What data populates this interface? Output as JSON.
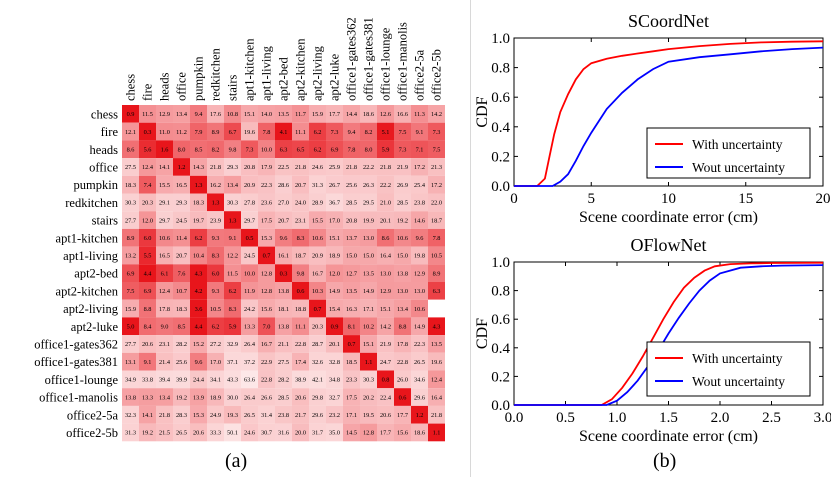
{
  "panel_labels": {
    "a": "(a)",
    "b": "(b)"
  },
  "colors": {
    "heat_max": "#e8151b",
    "heat_min": "#ffffff",
    "red": "#ff0000",
    "blue": "#0000ff"
  },
  "chart_data": [
    {
      "type": "heatmap",
      "title": "",
      "rows": [
        "chess",
        "fire",
        "heads",
        "office",
        "pumpkin",
        "redkitchen",
        "stairs",
        "apt1-kitchen",
        "apt1-living",
        "apt2-bed",
        "apt2-kitchen",
        "apt2-living",
        "apt2-luke",
        "office1-gates362",
        "office1-gates381",
        "office1-lounge",
        "office1-manolis",
        "office2-5a",
        "office2-5b"
      ],
      "columns": [
        "chess",
        "fire",
        "heads",
        "office",
        "pumpkin",
        "redkitchen",
        "stairs",
        "apt1-kitchen",
        "apt1-living",
        "apt2-bed",
        "apt2-kitchen",
        "apt2-living",
        "apt2-luke",
        "office1-gates362",
        "office1-gates381",
        "office1-lounge",
        "office1-manolis",
        "office2-5a",
        "office2-5b"
      ],
      "values": [
        [
          "0.9",
          "11.5",
          "12.9",
          "13.4",
          "9.4",
          "17.6",
          "10.8",
          "15.1",
          "14.0",
          "13.5",
          "11.7",
          "15.9",
          "17.7",
          "14.4",
          "18.6",
          "12.6",
          "16.6",
          "11.3",
          "14.2"
        ],
        [
          "12.1",
          "0.3",
          "11.0",
          "11.2",
          "7.9",
          "8.9",
          "6.7",
          "19.6",
          "7.8",
          "4.1",
          "11.1",
          "6.2",
          "7.3",
          "9.4",
          "8.2",
          "5.1",
          "7.5",
          "9.1",
          "7.3"
        ],
        [
          "8.6",
          "5.6",
          "1.6",
          "8.0",
          "8.5",
          "8.2",
          "9.8",
          "7.3",
          "10.0",
          "6.3",
          "6.5",
          "6.2",
          "6.9",
          "7.8",
          "8.0",
          "5.9",
          "7.3",
          "7.1",
          "7.5"
        ],
        [
          "27.5",
          "12.4",
          "14.1",
          "1.2",
          "14.3",
          "21.8",
          "29.3",
          "20.8",
          "17.9",
          "22.5",
          "21.8",
          "24.6",
          "25.9",
          "21.8",
          "22.2",
          "21.8",
          "21.9",
          "17.2",
          "21.3"
        ],
        [
          "18.3",
          "7.4",
          "15.5",
          "16.5",
          "1.3",
          "16.2",
          "13.4",
          "20.9",
          "22.3",
          "28.6",
          "20.7",
          "31.3",
          "26.7",
          "25.6",
          "26.3",
          "22.2",
          "26.9",
          "25.4",
          "17.2"
        ],
        [
          "30.3",
          "20.3",
          "29.1",
          "29.3",
          "18.3",
          "1.3",
          "30.3",
          "27.8",
          "23.6",
          "27.0",
          "24.0",
          "28.9",
          "36.7",
          "28.5",
          "29.5",
          "21.0",
          "28.5",
          "23.8",
          "22.0"
        ],
        [
          "27.7",
          "12.0",
          "29.7",
          "24.5",
          "19.7",
          "23.9",
          "1.3",
          "29.7",
          "17.5",
          "20.7",
          "23.1",
          "15.5",
          "17.0",
          "20.8",
          "19.9",
          "20.1",
          "19.2",
          "14.6",
          "18.7"
        ],
        [
          "8.9",
          "6.0",
          "10.6",
          "11.4",
          "6.2",
          "9.3",
          "9.1",
          "0.5",
          "15.3",
          "9.6",
          "8.3",
          "10.6",
          "15.1",
          "13.7",
          "13.0",
          "8.6",
          "10.6",
          "9.6",
          "7.8"
        ],
        [
          "13.2",
          "5.5",
          "16.5",
          "20.7",
          "10.4",
          "8.3",
          "12.2",
          "24.5",
          "0.7",
          "16.1",
          "18.7",
          "20.9",
          "18.9",
          "15.0",
          "15.0",
          "16.4",
          "15.0",
          "19.8",
          "10.5"
        ],
        [
          "6.9",
          "4.4",
          "6.1",
          "7.6",
          "4.3",
          "6.0",
          "11.5",
          "10.0",
          "12.8",
          "0.3",
          "9.8",
          "16.7",
          "12.0",
          "12.7",
          "13.5",
          "13.0",
          "13.8",
          "12.9",
          "8.9"
        ],
        [
          "7.5",
          "6.9",
          "12.4",
          "10.7",
          "4.2",
          "9.3",
          "6.2",
          "11.9",
          "12.8",
          "13.8",
          "0.6",
          "10.3",
          "14.9",
          "13.5",
          "14.9",
          "12.9",
          "13.0",
          "13.0",
          "6.3"
        ],
        [
          "15.9",
          "8.8",
          "17.8",
          "18.3",
          "3.6",
          "10.5",
          "8.3",
          "24.2",
          "15.6",
          "18.1",
          "18.8",
          "0.7",
          "15.4",
          "16.3",
          "17.1",
          "15.1",
          "13.4",
          "10.6",
          ""
        ],
        [
          "5.0",
          "8.4",
          "9.0",
          "8.5",
          "4.4",
          "6.2",
          "5.9",
          "13.3",
          "7.0",
          "13.8",
          "11.1",
          "20.3",
          "0.9",
          "8.1",
          "10.2",
          "14.2",
          "8.8",
          "14.9",
          "4.3"
        ],
        [
          "27.7",
          "20.6",
          "23.1",
          "28.2",
          "15.2",
          "27.2",
          "32.9",
          "26.4",
          "16.7",
          "21.1",
          "22.8",
          "28.7",
          "20.1",
          "0.7",
          "15.1",
          "21.9",
          "17.8",
          "22.3",
          "13.5"
        ],
        [
          "13.1",
          "9.1",
          "21.4",
          "25.6",
          "9.6",
          "17.0",
          "37.1",
          "37.2",
          "22.9",
          "27.5",
          "17.4",
          "32.6",
          "32.8",
          "18.5",
          "1.1",
          "24.7",
          "22.8",
          "26.5",
          "19.6"
        ],
        [
          "34.9",
          "33.8",
          "39.4",
          "39.9",
          "24.4",
          "34.1",
          "43.3",
          "63.6",
          "22.8",
          "28.2",
          "38.9",
          "42.1",
          "34.8",
          "23.3",
          "30.3",
          "0.8",
          "26.0",
          "34.6",
          "12.4"
        ],
        [
          "13.8",
          "13.3",
          "13.4",
          "19.2",
          "13.9",
          "18.9",
          "30.0",
          "26.4",
          "26.6",
          "28.5",
          "20.6",
          "29.8",
          "32.7",
          "17.5",
          "20.2",
          "22.4",
          "0.6",
          "29.6",
          "16.4"
        ],
        [
          "32.3",
          "14.1",
          "21.8",
          "28.3",
          "15.3",
          "24.9",
          "19.3",
          "26.5",
          "31.4",
          "23.8",
          "21.7",
          "29.6",
          "23.2",
          "17.1",
          "19.5",
          "20.6",
          "17.7",
          "1.2",
          "21.8"
        ],
        [
          "31.3",
          "19.2",
          "21.5",
          "26.5",
          "20.6",
          "33.3",
          "50.1",
          "24.6",
          "30.7",
          "31.6",
          "20.0",
          "31.7",
          "35.0",
          "14.5",
          "12.8",
          "17.7",
          "15.6",
          "18.6",
          "1.1"
        ]
      ]
    },
    {
      "type": "line",
      "title": "SCoordNet",
      "xlabel": "Scene coordinate error (cm)",
      "ylabel": "CDF",
      "xlim": [
        0,
        20
      ],
      "ylim": [
        0.0,
        1.0
      ],
      "xticks": [
        "0",
        "5",
        "10",
        "15",
        "20"
      ],
      "yticks": [
        "0.0",
        "0.2",
        "0.4",
        "0.6",
        "0.8",
        "1.0"
      ],
      "legend_position": "lower-right",
      "series": [
        {
          "name": "With uncertainty",
          "color": "#ff0000",
          "x": [
            0,
            1.5,
            2,
            2.3,
            2.6,
            3,
            3.5,
            4,
            4.5,
            5,
            6,
            7,
            8,
            9,
            10,
            12,
            14,
            16,
            18,
            20
          ],
          "y": [
            0,
            0,
            0.05,
            0.2,
            0.35,
            0.5,
            0.62,
            0.72,
            0.79,
            0.83,
            0.86,
            0.88,
            0.895,
            0.91,
            0.925,
            0.945,
            0.96,
            0.97,
            0.975,
            0.978
          ]
        },
        {
          "name": "Wout uncertainty",
          "color": "#0000ff",
          "x": [
            0,
            2.5,
            3,
            3.5,
            4,
            4.5,
            5,
            5.5,
            6,
            7,
            8,
            9,
            10,
            12,
            14,
            16,
            18,
            20
          ],
          "y": [
            0,
            0,
            0.03,
            0.08,
            0.17,
            0.27,
            0.36,
            0.44,
            0.52,
            0.63,
            0.72,
            0.79,
            0.84,
            0.87,
            0.89,
            0.91,
            0.925,
            0.935
          ]
        }
      ]
    },
    {
      "type": "line",
      "title": "OFlowNet",
      "xlabel": "Scene coordinate error (cm)",
      "ylabel": "CDF",
      "xlim": [
        0.0,
        3.0
      ],
      "ylim": [
        0.0,
        1.0
      ],
      "xticks": [
        "0.0",
        "0.5",
        "1.0",
        "1.5",
        "2.0",
        "2.5",
        "3.0"
      ],
      "yticks": [
        "0.0",
        "0.2",
        "0.4",
        "0.6",
        "0.8",
        "1.0"
      ],
      "legend_position": "lower-right",
      "series": [
        {
          "name": "With uncertainty",
          "color": "#ff0000",
          "x": [
            0,
            0.85,
            0.95,
            1.05,
            1.15,
            1.25,
            1.35,
            1.45,
            1.55,
            1.65,
            1.75,
            1.85,
            1.95,
            2.1,
            2.3,
            2.5,
            3.0
          ],
          "y": [
            0,
            0,
            0.04,
            0.12,
            0.22,
            0.34,
            0.47,
            0.6,
            0.72,
            0.82,
            0.89,
            0.94,
            0.97,
            0.985,
            0.99,
            0.993,
            0.995
          ]
        },
        {
          "name": "Wout uncertainty",
          "color": "#0000ff",
          "x": [
            0,
            0.9,
            1.0,
            1.1,
            1.2,
            1.3,
            1.4,
            1.5,
            1.6,
            1.7,
            1.8,
            1.9,
            2.0,
            2.2,
            2.4,
            2.6,
            3.0
          ],
          "y": [
            0,
            0,
            0.03,
            0.09,
            0.17,
            0.27,
            0.38,
            0.5,
            0.61,
            0.71,
            0.8,
            0.87,
            0.92,
            0.96,
            0.97,
            0.975,
            0.978
          ]
        }
      ]
    }
  ]
}
